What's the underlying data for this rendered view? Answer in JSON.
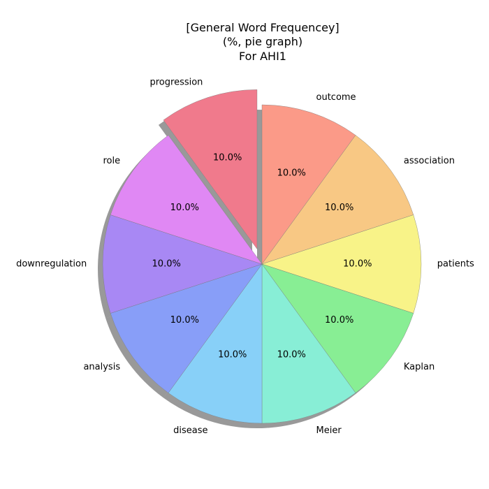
{
  "chart_data": {
    "type": "pie",
    "title_lines": [
      "[General Word Frequencey]",
      "(%, pie graph)",
      "For AHI1"
    ],
    "labels": [
      "outcome",
      "association",
      "patients",
      "Kaplan",
      "Meier",
      "disease",
      "analysis",
      "downregulation",
      "role",
      "progression"
    ],
    "values": [
      10.0,
      10.0,
      10.0,
      10.0,
      10.0,
      10.0,
      10.0,
      10.0,
      10.0,
      10.0
    ],
    "value_labels": [
      "10.0%",
      "10.0%",
      "10.0%",
      "10.0%",
      "10.0%",
      "10.0%",
      "10.0%",
      "10.0%",
      "10.0%",
      "10.0%"
    ],
    "colors": [
      "#fb9a88",
      "#f8c884",
      "#f8f388",
      "#88ee94",
      "#88eed6",
      "#88d0f8",
      "#889ef8",
      "#a888f4",
      "#e088f4",
      "#f07a8c"
    ],
    "exploded": [
      "progression"
    ],
    "shadow": true,
    "start_angle_deg": 90,
    "direction": "clockwise"
  }
}
